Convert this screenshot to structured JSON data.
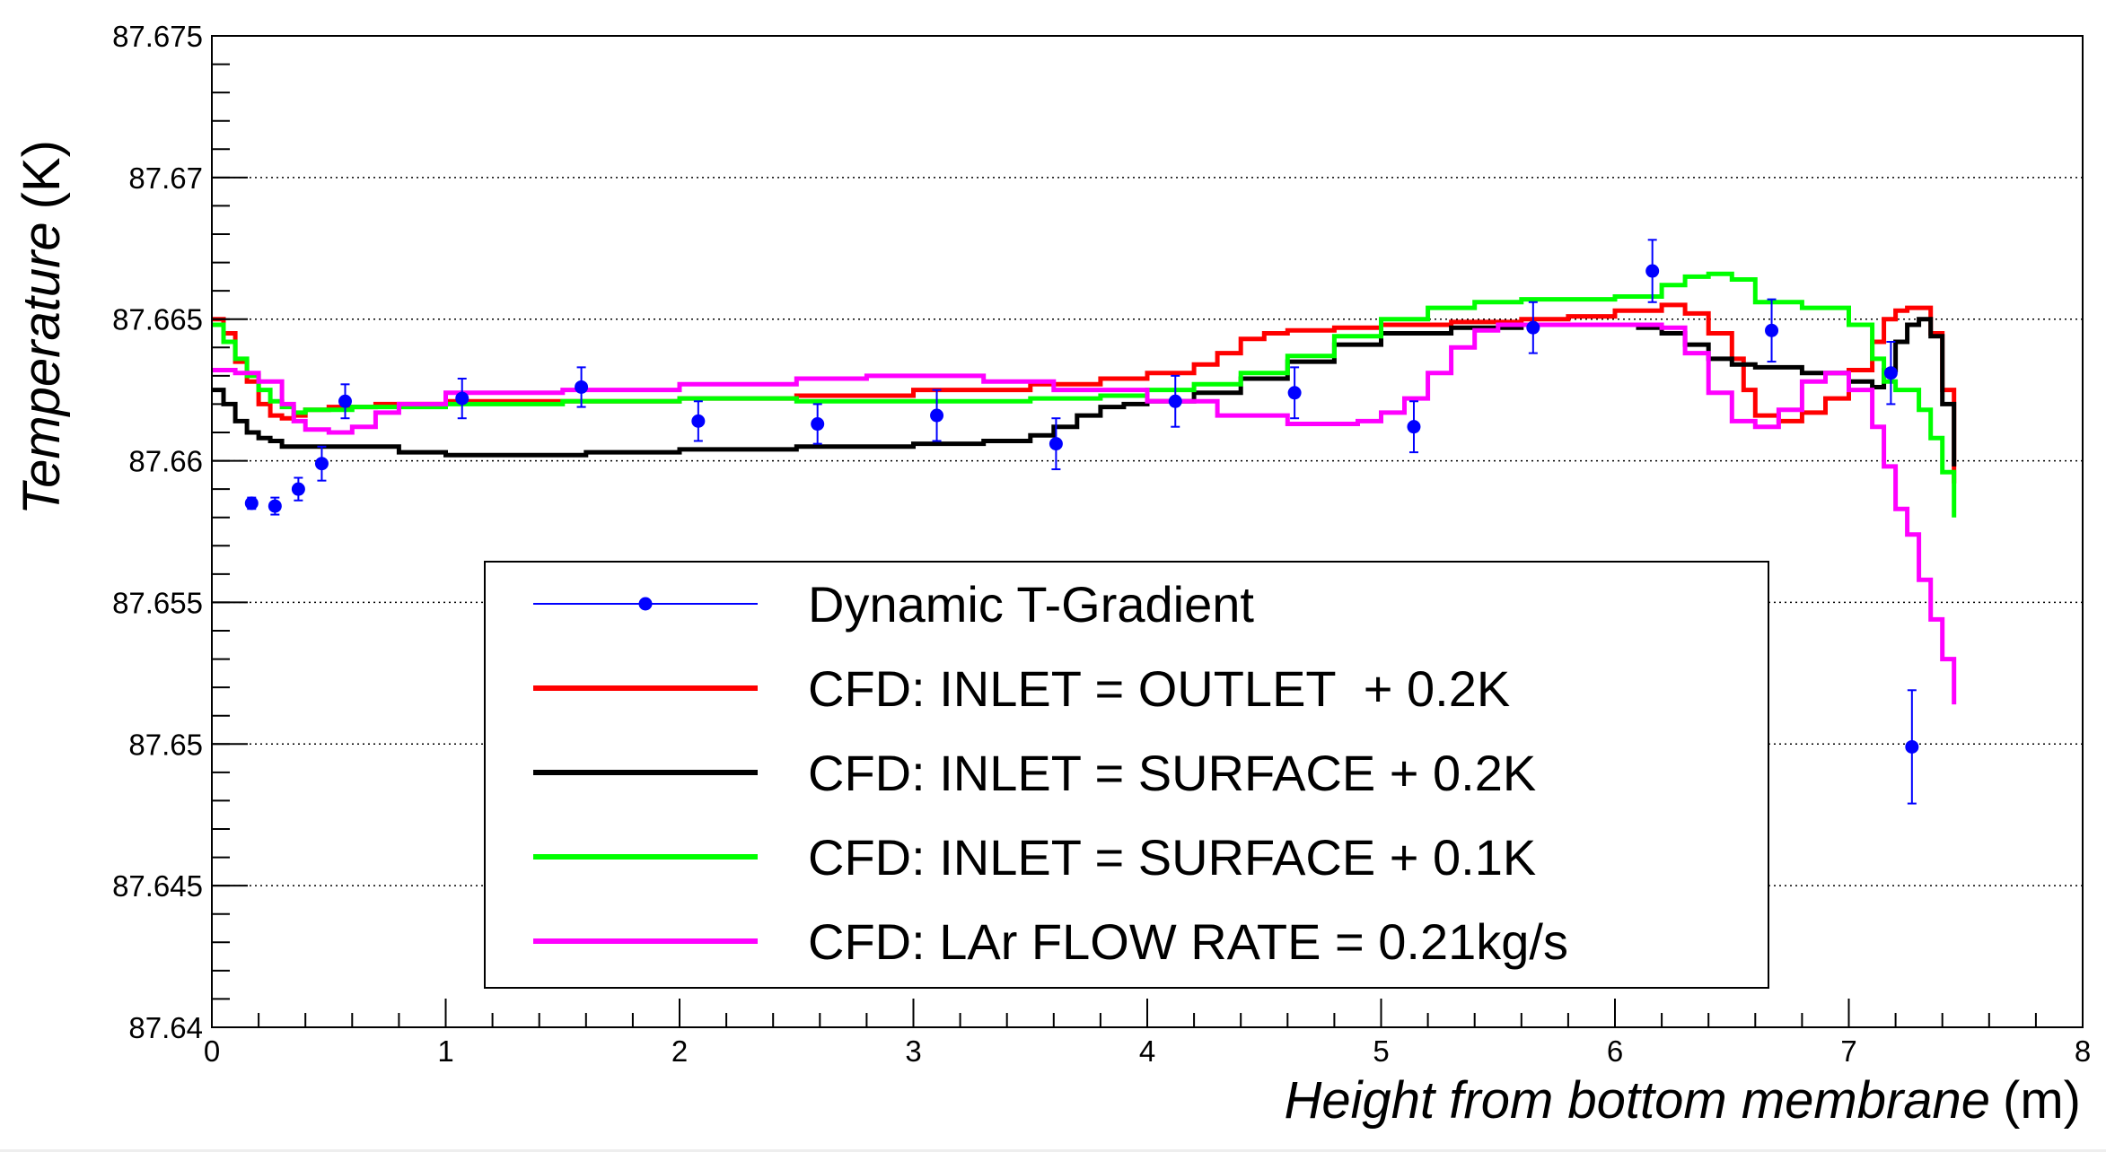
{
  "chart_data": {
    "type": "line",
    "title": "",
    "xlabel": "Height from bottom membrane",
    "xunit": "(m)",
    "ylabel": "Temperature",
    "yunit": "(K)",
    "xlim": [
      0,
      8
    ],
    "ylim": [
      87.64,
      87.675
    ],
    "x_ticks": [
      0,
      1,
      2,
      3,
      4,
      5,
      6,
      7,
      8
    ],
    "x_tick_labels": [
      "0",
      "1",
      "2",
      "3",
      "4",
      "5",
      "6",
      "7",
      "8"
    ],
    "y_ticks": [
      87.64,
      87.645,
      87.65,
      87.655,
      87.66,
      87.665,
      87.67,
      87.675
    ],
    "y_tick_labels": [
      "87.64",
      "87.645",
      "87.65",
      "87.655",
      "87.66",
      "87.665",
      "87.67",
      "87.675"
    ],
    "grid": "horizontal dotted",
    "legend_position": "bottom-center",
    "series": [
      {
        "name": "Dynamic T-Gradient",
        "kind": "points",
        "color": "#0000ff",
        "x": [
          0.17,
          0.27,
          0.37,
          0.47,
          0.57,
          1.07,
          1.58,
          2.08,
          2.59,
          3.1,
          3.61,
          4.12,
          4.63,
          5.14,
          5.65,
          6.16,
          6.67,
          7.18,
          7.27
        ],
        "y": [
          87.6585,
          87.6584,
          87.659,
          87.6599,
          87.6621,
          87.6622,
          87.6626,
          87.6614,
          87.6613,
          87.6616,
          87.6606,
          87.6621,
          87.6624,
          87.6612,
          87.6647,
          87.6667,
          87.6646,
          87.6631,
          87.6499
        ],
        "err": [
          0.0002,
          0.0003,
          0.0004,
          0.0006,
          0.0006,
          0.0007,
          0.0007,
          0.0007,
          0.0007,
          0.0009,
          0.0009,
          0.0009,
          0.0009,
          0.0009,
          0.0009,
          0.0011,
          0.0011,
          0.0011,
          0.002
        ]
      },
      {
        "name": "CFD: INLET = OUTLET  + 0.2K",
        "kind": "step",
        "color": "#ff0000",
        "x": [
          0,
          0.05,
          0.1,
          0.15,
          0.2,
          0.25,
          0.3,
          0.35,
          0.4,
          0.5,
          0.7,
          1.0,
          1.5,
          2.0,
          2.5,
          3.0,
          3.5,
          3.8,
          4.0,
          4.2,
          4.3,
          4.4,
          4.5,
          4.6,
          4.8,
          5.0,
          5.3,
          5.6,
          5.8,
          6.0,
          6.2,
          6.3,
          6.4,
          6.5,
          6.55,
          6.6,
          6.7,
          6.8,
          6.9,
          7.0,
          7.1,
          7.15,
          7.2,
          7.25,
          7.3,
          7.35,
          7.4,
          7.45
        ],
        "y": [
          87.665,
          87.6645,
          87.6635,
          87.6628,
          87.662,
          87.6616,
          87.6615,
          87.6616,
          87.6618,
          87.6619,
          87.662,
          87.6621,
          87.6621,
          87.6622,
          87.6623,
          87.6625,
          87.6627,
          87.6629,
          87.6631,
          87.6634,
          87.6638,
          87.6643,
          87.6645,
          87.6646,
          87.6647,
          87.6648,
          87.6649,
          87.665,
          87.6651,
          87.6653,
          87.6655,
          87.6652,
          87.6645,
          87.6636,
          87.6625,
          87.6616,
          87.6614,
          87.6617,
          87.6622,
          87.6632,
          87.6642,
          87.665,
          87.6653,
          87.6654,
          87.6654,
          87.6645,
          87.6625,
          87.6592
        ]
      },
      {
        "name": "CFD: INLET = SURFACE + 0.2K",
        "kind": "step",
        "color": "#000000",
        "x": [
          0,
          0.05,
          0.1,
          0.15,
          0.2,
          0.25,
          0.3,
          0.4,
          0.6,
          0.8,
          1.0,
          1.3,
          1.6,
          2.0,
          2.5,
          3.0,
          3.3,
          3.5,
          3.6,
          3.7,
          3.8,
          3.9,
          4.0,
          4.2,
          4.4,
          4.6,
          4.8,
          5.0,
          5.3,
          5.6,
          5.9,
          6.1,
          6.2,
          6.3,
          6.4,
          6.5,
          6.6,
          6.8,
          7.0,
          7.1,
          7.15,
          7.2,
          7.25,
          7.3,
          7.35,
          7.4,
          7.45
        ],
        "y": [
          87.6625,
          87.662,
          87.6614,
          87.661,
          87.6608,
          87.6607,
          87.6605,
          87.6605,
          87.6605,
          87.6603,
          87.6602,
          87.6602,
          87.6603,
          87.6604,
          87.6605,
          87.6606,
          87.6607,
          87.6609,
          87.6612,
          87.6616,
          87.6619,
          87.662,
          87.6621,
          87.6624,
          87.6629,
          87.6635,
          87.6641,
          87.6645,
          87.6647,
          87.6648,
          87.6648,
          87.6647,
          87.6645,
          87.6641,
          87.6636,
          87.6634,
          87.6633,
          87.6631,
          87.6628,
          87.6626,
          87.6632,
          87.6642,
          87.6648,
          87.665,
          87.6644,
          87.662,
          87.6598
        ]
      },
      {
        "name": "CFD: INLET = SURFACE + 0.1K",
        "kind": "step",
        "color": "#00ff00",
        "x": [
          0,
          0.05,
          0.1,
          0.15,
          0.2,
          0.25,
          0.3,
          0.35,
          0.4,
          0.6,
          1.0,
          1.5,
          2.0,
          2.5,
          3.0,
          3.5,
          3.8,
          4.0,
          4.2,
          4.4,
          4.6,
          4.8,
          5.0,
          5.2,
          5.4,
          5.6,
          5.8,
          6.0,
          6.2,
          6.3,
          6.4,
          6.5,
          6.6,
          6.8,
          7.0,
          7.1,
          7.15,
          7.2,
          7.3,
          7.35,
          7.4,
          7.45
        ],
        "y": [
          87.6648,
          87.6642,
          87.6636,
          87.663,
          87.6625,
          87.6621,
          87.6619,
          87.6617,
          87.6618,
          87.6619,
          87.662,
          87.6621,
          87.6622,
          87.6621,
          87.6621,
          87.6622,
          87.6623,
          87.6625,
          87.6627,
          87.6631,
          87.6637,
          87.6644,
          87.665,
          87.6654,
          87.6656,
          87.6657,
          87.6657,
          87.6658,
          87.6662,
          87.6665,
          87.6666,
          87.6664,
          87.6656,
          87.6654,
          87.6648,
          87.6636,
          87.6628,
          87.6625,
          87.6618,
          87.6608,
          87.6596,
          87.658
        ]
      },
      {
        "name": "CFD: LAr FLOW RATE = 0.21kg/s",
        "kind": "step",
        "color": "#ff00ff",
        "x": [
          0,
          0.1,
          0.2,
          0.3,
          0.35,
          0.4,
          0.5,
          0.6,
          0.7,
          0.8,
          1.0,
          1.5,
          2.0,
          2.5,
          2.8,
          3.0,
          3.3,
          3.6,
          4.0,
          4.3,
          4.6,
          4.9,
          5.0,
          5.1,
          5.2,
          5.3,
          5.4,
          5.5,
          5.6,
          5.8,
          6.0,
          6.2,
          6.3,
          6.4,
          6.5,
          6.6,
          6.7,
          6.8,
          6.9,
          7.0,
          7.1,
          7.15,
          7.2,
          7.25,
          7.3,
          7.35,
          7.4,
          7.45
        ],
        "y": [
          87.6632,
          87.6631,
          87.6628,
          87.662,
          87.6614,
          87.6611,
          87.661,
          87.6612,
          87.6617,
          87.662,
          87.6624,
          87.6625,
          87.6627,
          87.6629,
          87.663,
          87.663,
          87.6628,
          87.6625,
          87.6621,
          87.6616,
          87.6613,
          87.6614,
          87.6617,
          87.6622,
          87.6631,
          87.664,
          87.6646,
          87.6648,
          87.6648,
          87.6648,
          87.6648,
          87.6647,
          87.6638,
          87.6624,
          87.6614,
          87.6612,
          87.6618,
          87.6628,
          87.6631,
          87.6625,
          87.6612,
          87.6598,
          87.6583,
          87.6574,
          87.6558,
          87.6544,
          87.653,
          87.6514
        ]
      }
    ]
  }
}
